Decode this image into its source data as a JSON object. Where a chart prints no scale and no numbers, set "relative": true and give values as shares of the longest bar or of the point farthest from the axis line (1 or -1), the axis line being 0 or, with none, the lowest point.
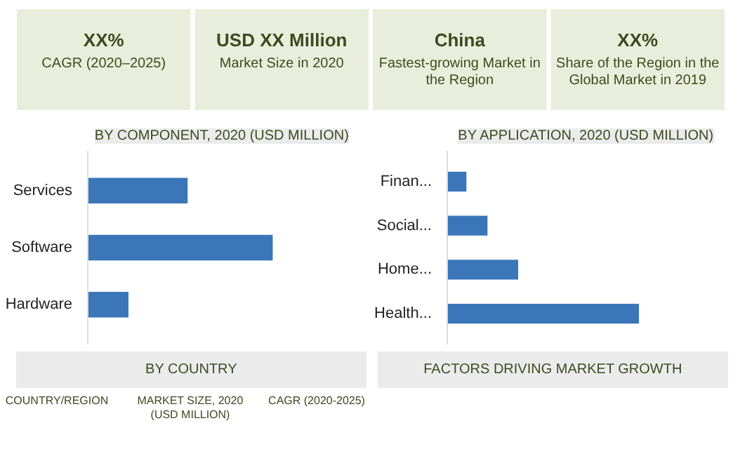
{
  "chart_data": [
    {
      "type": "other",
      "annotations": [
        "XX%",
        "CAGR (2020–2025)",
        "USD XX Million",
        "Market Size in 2020",
        "China",
        "Fastest-growing Market in the Region",
        "XX%",
        "Share of the Region in the Global Market in 2019"
      ]
    },
    {
      "type": "bar",
      "orientation": "horizontal",
      "relative": true,
      "title": "BY COMPONENT, 2020 (USD MILLION)",
      "categories": [
        "Services",
        "Software",
        "Hardware"
      ],
      "values": [
        0.54,
        1,
        0.22
      ],
      "color": "#3a76b8"
    },
    {
      "type": "bar",
      "orientation": "horizontal",
      "relative": true,
      "title": "BY APPLICATION, 2020 (USD MILLION)",
      "categories": [
        "Finan...",
        "Social...",
        "Home...",
        "Health..."
      ],
      "values": [
        0.1,
        0.21,
        0.37,
        1
      ],
      "color": "#3a76b8"
    },
    {
      "type": "other",
      "annotations": [
        "BY COUNTRY",
        "FACTORS DRIVING MARKET GROWTH",
        "COUNTRY/REGION",
        "MARKET SIZE, 2020 (USD MILLION)",
        "CAGR (2020-2025)"
      ]
    }
  ]
}
